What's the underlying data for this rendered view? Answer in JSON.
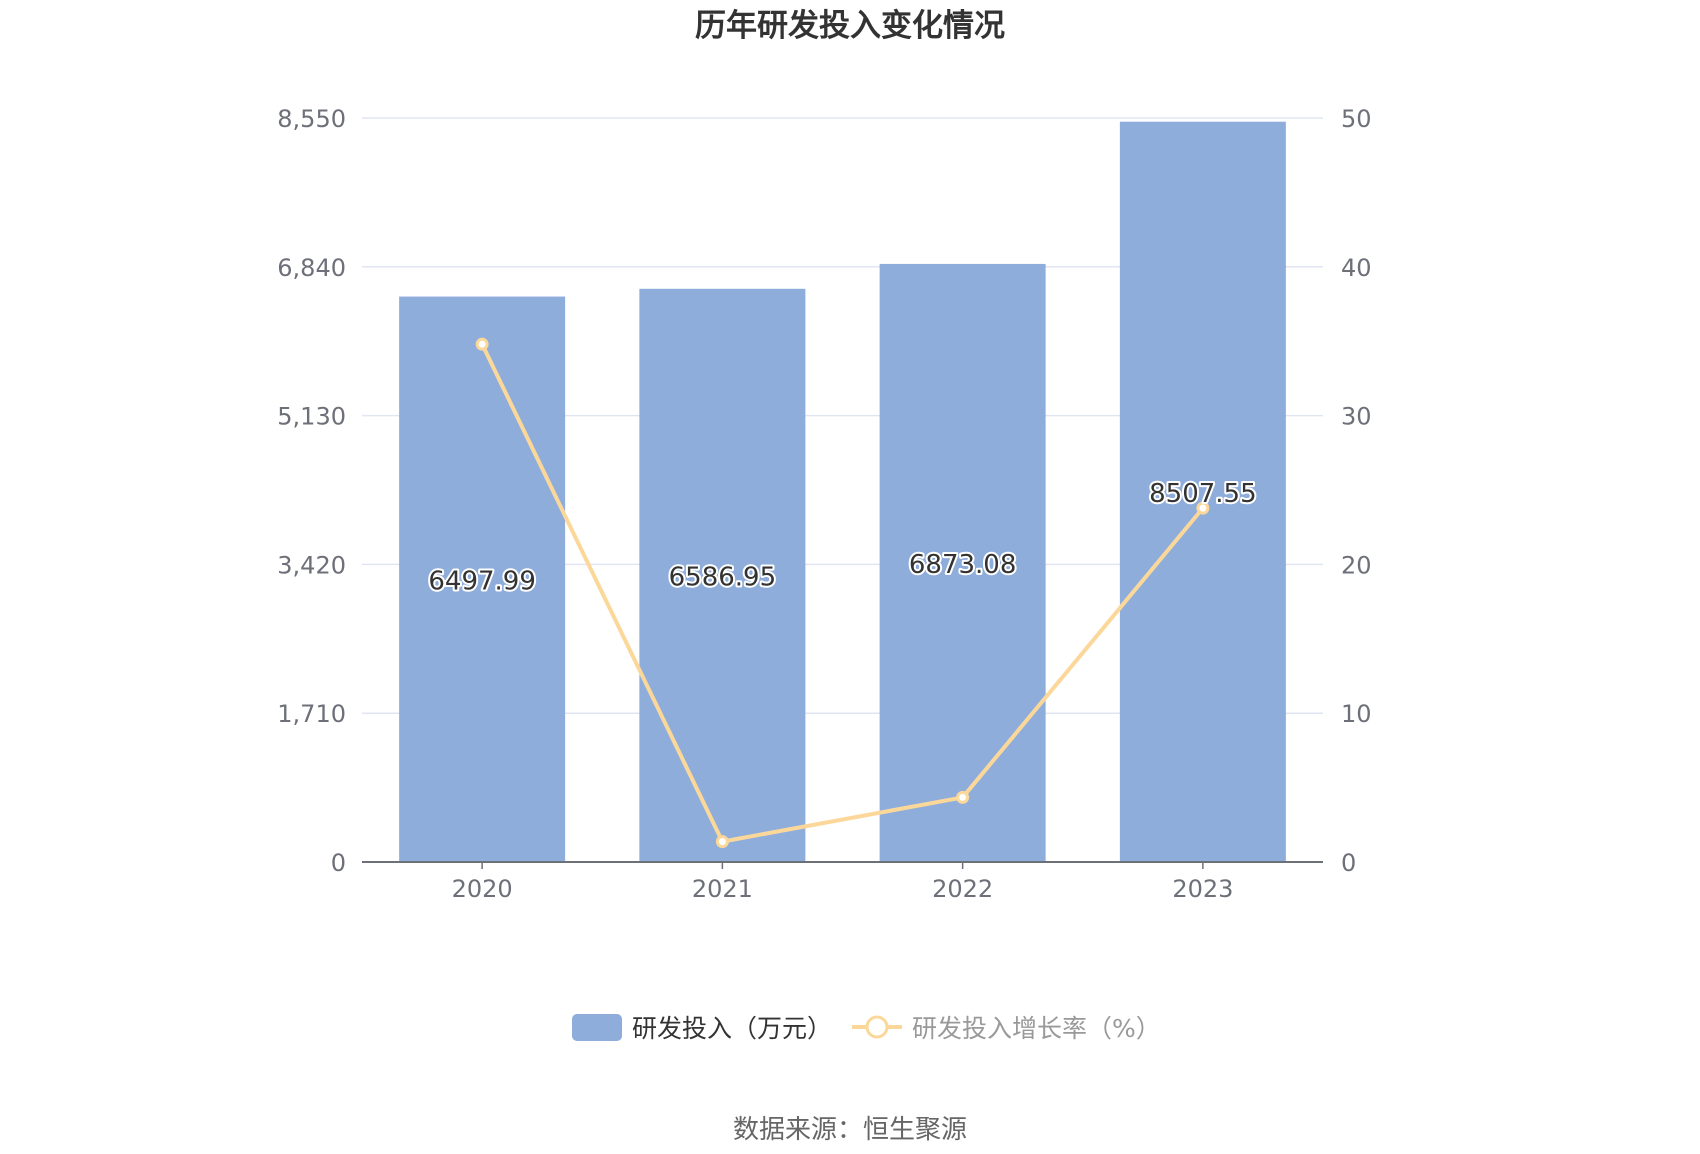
{
  "chart_data": {
    "type": "bar",
    "title": "历年研发投入变化情况",
    "categories": [
      "2020",
      "2021",
      "2022",
      "2023"
    ],
    "series": [
      {
        "name": "研发投入（万元）",
        "type": "bar",
        "axis": "left",
        "values": [
          6497.99,
          6586.95,
          6873.08,
          8507.55
        ],
        "labels": [
          "6497.99",
          "6586.95",
          "6873.08",
          "8507.55"
        ],
        "color": "#8eaddb"
      },
      {
        "name": "研发投入增长率（%）",
        "type": "line",
        "axis": "right",
        "values": [
          34.8,
          1.37,
          4.34,
          23.78
        ],
        "color": "#fbd89a"
      }
    ],
    "y_left": {
      "min": 0,
      "max": 8550,
      "ticks": [
        "0",
        "1,710",
        "3,420",
        "5,130",
        "6,840",
        "8,550"
      ]
    },
    "y_right": {
      "min": 0,
      "max": 50,
      "ticks": [
        "0",
        "10",
        "20",
        "30",
        "40",
        "50"
      ]
    },
    "grid": true,
    "legend_position": "bottom-center",
    "source": "数据来源：恒生聚源"
  }
}
